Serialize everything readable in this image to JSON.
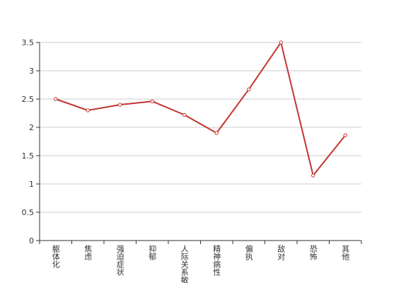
{
  "chart_data": {
    "type": "line",
    "categories": [
      "躯体化",
      "焦虑",
      "强迫症状",
      "抑郁",
      "人际关系敏感",
      "精神病性",
      "偏执",
      "敌对",
      "恐怖",
      "其他"
    ],
    "values": [
      2.5,
      2.3,
      2.4,
      2.46,
      2.22,
      1.9,
      2.67,
      3.5,
      1.15,
      1.86
    ],
    "color": "#c23531",
    "ylim": [
      0,
      3.5
    ],
    "yticks": [
      0,
      0.5,
      1,
      1.5,
      2,
      2.5,
      3,
      3.5
    ],
    "grid": true
  }
}
